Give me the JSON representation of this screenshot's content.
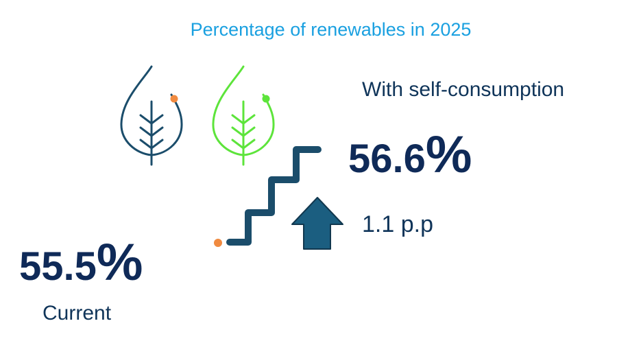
{
  "title": "Percentage of renewables in 2025",
  "self_consumption": {
    "label": "With self-consumption",
    "value": "56.6",
    "unit": "%"
  },
  "change": {
    "value": "1.1 p.p",
    "direction": "up"
  },
  "current": {
    "label": "Current",
    "value": "55.5",
    "unit": "%"
  },
  "colors": {
    "title": "#1AA0E0",
    "dark_navy": "#0F2A58",
    "text_navy": "#0F3459",
    "leaf_dark": "#1B4D6B",
    "leaf_green": "#5DE43B",
    "arrow": "#1B5E80",
    "orange_dot": "#F08A40",
    "green_dot": "#5DE43B"
  },
  "icons": [
    "leaf-icon-dark",
    "leaf-icon-green",
    "stairs-icon",
    "arrow-up-icon"
  ]
}
